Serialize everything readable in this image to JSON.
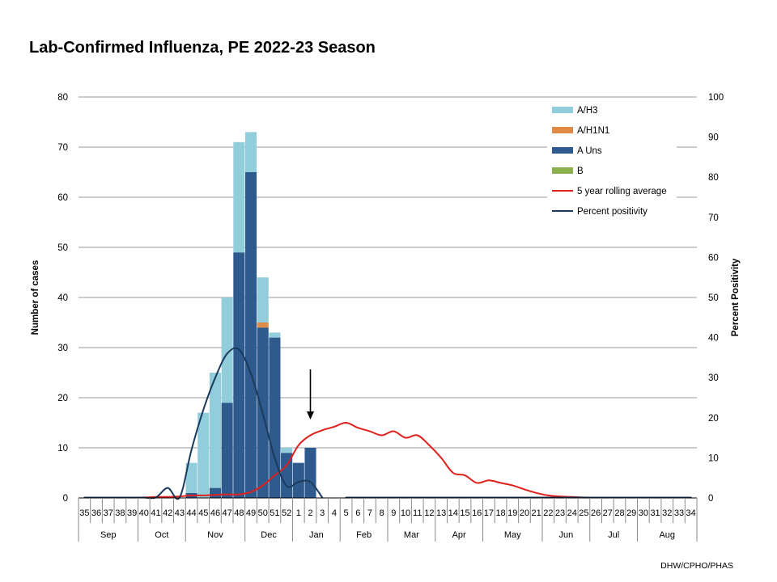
{
  "chart_data": {
    "type": "bar",
    "stacked": true,
    "title": "Lab-Confirmed Influenza, PE 2022-23 Season",
    "ylabel": "Number of cases",
    "y2label": "Percent Positivity",
    "ylim": [
      0,
      80
    ],
    "y2lim": [
      0,
      100
    ],
    "yticks": [
      0,
      10,
      20,
      30,
      40,
      50,
      60,
      70,
      80
    ],
    "y2ticks": [
      0,
      10,
      20,
      30,
      40,
      50,
      60,
      70,
      80,
      90,
      100
    ],
    "categories": [
      "35",
      "36",
      "37",
      "38",
      "39",
      "40",
      "41",
      "42",
      "43",
      "44",
      "45",
      "46",
      "47",
      "48",
      "49",
      "50",
      "51",
      "52",
      "1",
      "2",
      "3",
      "4",
      "5",
      "6",
      "7",
      "8",
      "9",
      "10",
      "11",
      "12",
      "13",
      "14",
      "15",
      "16",
      "17",
      "18",
      "19",
      "20",
      "21",
      "22",
      "23",
      "24",
      "25",
      "26",
      "27",
      "28",
      "29",
      "30",
      "31",
      "32",
      "33",
      "34"
    ],
    "months": [
      {
        "label": "Sep",
        "start": 0,
        "end": 4
      },
      {
        "label": "Oct",
        "start": 5,
        "end": 8
      },
      {
        "label": "Nov",
        "start": 9,
        "end": 13
      },
      {
        "label": "Dec",
        "start": 14,
        "end": 17
      },
      {
        "label": "Jan",
        "start": 18,
        "end": 21
      },
      {
        "label": "Feb",
        "start": 22,
        "end": 25
      },
      {
        "label": "Mar",
        "start": 26,
        "end": 29
      },
      {
        "label": "Apr",
        "start": 30,
        "end": 33
      },
      {
        "label": "May",
        "start": 34,
        "end": 38
      },
      {
        "label": "Jun",
        "start": 39,
        "end": 42
      },
      {
        "label": "Jul",
        "start": 43,
        "end": 46
      },
      {
        "label": "Aug",
        "start": 47,
        "end": 51
      }
    ],
    "series": [
      {
        "name": "A Uns",
        "kind": "bar",
        "axis": "left",
        "color": "#2E5A8E",
        "values": [
          0,
          0,
          0,
          0,
          0,
          0,
          0,
          0,
          0,
          1,
          0,
          2,
          19,
          49,
          65,
          34,
          32,
          9,
          7,
          10,
          0,
          0,
          0,
          0,
          0,
          0,
          0,
          0,
          0,
          0,
          0,
          0,
          0,
          0,
          0,
          0,
          0,
          0,
          0,
          0,
          0,
          0,
          0,
          0,
          0,
          0,
          0,
          0,
          0,
          0,
          0,
          0
        ]
      },
      {
        "name": "A/H1N1",
        "kind": "bar",
        "axis": "left",
        "color": "#E08A45",
        "values": [
          0,
          0,
          0,
          0,
          0,
          0,
          0,
          0,
          0,
          0,
          0,
          0,
          0,
          0,
          0,
          1,
          0,
          0,
          0,
          0,
          0,
          0,
          0,
          0,
          0,
          0,
          0,
          0,
          0,
          0,
          0,
          0,
          0,
          0,
          0,
          0,
          0,
          0,
          0,
          0,
          0,
          0,
          0,
          0,
          0,
          0,
          0,
          0,
          0,
          0,
          0,
          0
        ]
      },
      {
        "name": "B",
        "kind": "bar",
        "axis": "left",
        "color": "#8DB04F",
        "values": [
          0,
          0,
          0,
          0,
          0,
          0,
          0,
          0,
          0,
          0,
          0,
          0,
          0,
          0,
          0,
          0,
          0,
          0,
          0,
          0,
          0,
          0,
          0,
          0,
          0,
          0,
          0,
          0,
          0,
          0,
          0,
          0,
          0,
          0,
          0,
          0,
          0,
          0,
          0,
          0,
          0,
          0,
          0,
          0,
          0,
          0,
          0,
          0,
          0,
          0,
          0,
          0
        ]
      },
      {
        "name": "A/H3",
        "kind": "bar",
        "axis": "left",
        "color": "#92CDDC",
        "values": [
          0,
          0,
          0,
          0,
          0,
          0,
          0,
          0,
          0,
          6,
          17,
          23,
          21,
          22,
          8,
          9,
          1,
          1,
          0,
          0,
          0,
          0,
          0,
          0,
          0,
          0,
          0,
          0,
          0,
          0,
          0,
          0,
          0,
          0,
          0,
          0,
          0,
          0,
          0,
          0,
          0,
          0,
          0,
          0,
          0,
          0,
          0,
          0,
          0,
          0,
          0,
          0
        ]
      },
      {
        "name": "5 year rolling average",
        "kind": "line",
        "axis": "left",
        "color": "#E0201B",
        "values": [
          0,
          0,
          0,
          0,
          0,
          0.1,
          0.2,
          0.2,
          0.3,
          0.5,
          0.5,
          0.6,
          0.7,
          0.7,
          1.2,
          2.5,
          4.5,
          6.5,
          10.5,
          12.5,
          13.5,
          14.2,
          15,
          14,
          13.3,
          12.5,
          13.3,
          12,
          12.5,
          10.5,
          8,
          5,
          4.5,
          3,
          3.5,
          3,
          2.5,
          1.7,
          1,
          0.5,
          0.3,
          0.2,
          0.1,
          0,
          0,
          0,
          0,
          0,
          0,
          0,
          0,
          0
        ]
      },
      {
        "name": "Percent positivity",
        "kind": "line",
        "axis": "right",
        "color": "#1B3A5C",
        "values": [
          0,
          0,
          0,
          0,
          0,
          0,
          0,
          2.5,
          0,
          12,
          22,
          30,
          36,
          37,
          31,
          21,
          10,
          3,
          4,
          4,
          0,
          null,
          0,
          0,
          0,
          0,
          0,
          0,
          0,
          0,
          0,
          0,
          0,
          0,
          0,
          0,
          0,
          0,
          0,
          0,
          0,
          0,
          0,
          0,
          0,
          0,
          0,
          0,
          0,
          0,
          0,
          0
        ]
      }
    ],
    "legend_position": "top-right",
    "legend_order": [
      "A/H3",
      "A/H1N1",
      "A Uns",
      "B",
      "5 year rolling average",
      "Percent positivity"
    ],
    "annotations": [
      {
        "type": "arrow",
        "at_category": "2",
        "direction": "down",
        "color": "#000000"
      }
    ],
    "grid": true
  },
  "source_text": "DHW/CPHO/PHAS"
}
